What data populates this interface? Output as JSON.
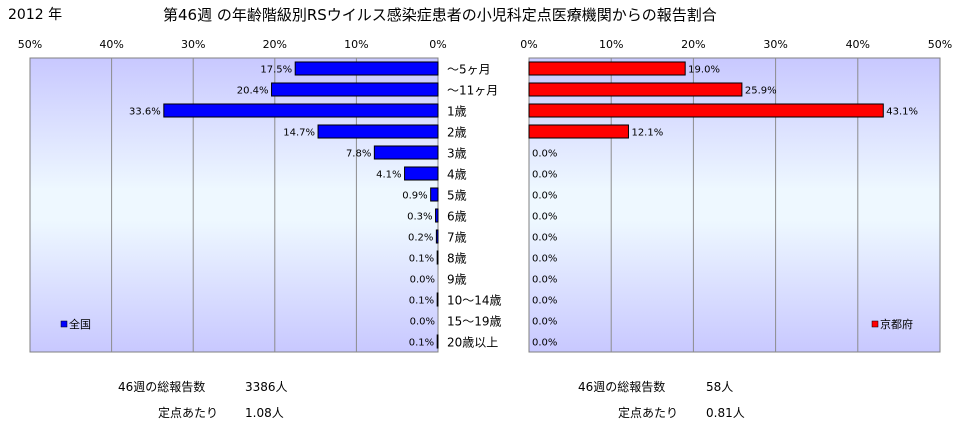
{
  "header": {
    "year": "2012 年",
    "title": "第46週 の年齢階級別RSウイルス感染症患者の小児科定点医療機関からの報告割合"
  },
  "age_groups": [
    "～5ヶ月",
    "～11ヶ月",
    "1歳",
    "2歳",
    "3歳",
    "4歳",
    "5歳",
    "6歳",
    "7歳",
    "8歳",
    "9歳",
    "10～14歳",
    "15～19歳",
    "20歳以上"
  ],
  "chart_data": [
    {
      "type": "bar",
      "orientation": "horizontal",
      "direction": "reversed",
      "series": [
        {
          "name": "全国",
          "values": [
            17.5,
            20.4,
            33.6,
            14.7,
            7.8,
            4.1,
            0.9,
            0.3,
            0.2,
            0.1,
            0.0,
            0.1,
            0.0,
            0.1
          ]
        }
      ],
      "value_labels": [
        "17.5%",
        "20.4%",
        "33.6%",
        "14.7%",
        "7.8%",
        "4.1%",
        "0.9%",
        "0.3%",
        "0.2%",
        "0.1%",
        "0.0%",
        "0.1%",
        "0.0%",
        "0.1%"
      ],
      "xlim": [
        0,
        50
      ],
      "tick_labels": [
        "50%",
        "40%",
        "30%",
        "20%",
        "10%",
        "0%"
      ],
      "legend": "bottom-left",
      "grid": true,
      "color": "#0000ff"
    },
    {
      "type": "bar",
      "orientation": "horizontal",
      "series": [
        {
          "name": "京都府",
          "values": [
            19.0,
            25.9,
            43.1,
            12.1,
            0.0,
            0.0,
            0.0,
            0.0,
            0.0,
            0.0,
            0.0,
            0.0,
            0.0,
            0.0
          ]
        }
      ],
      "value_labels": [
        "19.0%",
        "25.9%",
        "43.1%",
        "12.1%",
        "0.0%",
        "0.0%",
        "0.0%",
        "0.0%",
        "0.0%",
        "0.0%",
        "0.0%",
        "0.0%",
        "0.0%",
        "0.0%"
      ],
      "xlim": [
        0,
        50
      ],
      "tick_labels": [
        "0%",
        "10%",
        "20%",
        "30%",
        "40%",
        "50%"
      ],
      "legend": "bottom-right",
      "grid": true,
      "color": "#ff0000"
    }
  ],
  "stats": {
    "national": {
      "total_label": "46週の総報告数",
      "total_value": "3386人",
      "per_label": "定点あたり",
      "per_value": "1.08人"
    },
    "kyoto": {
      "total_label": "46週の総報告数",
      "total_value": "58人",
      "per_label": "定点あたり",
      "per_value": "0.81人"
    }
  },
  "colors": {
    "plot_top": "#c8c8ff",
    "plot_mid": "#eaf6ff",
    "plot_bottom": "#c8c8ff",
    "national_bar": "#0000ff",
    "kyoto_bar": "#ff0000"
  }
}
